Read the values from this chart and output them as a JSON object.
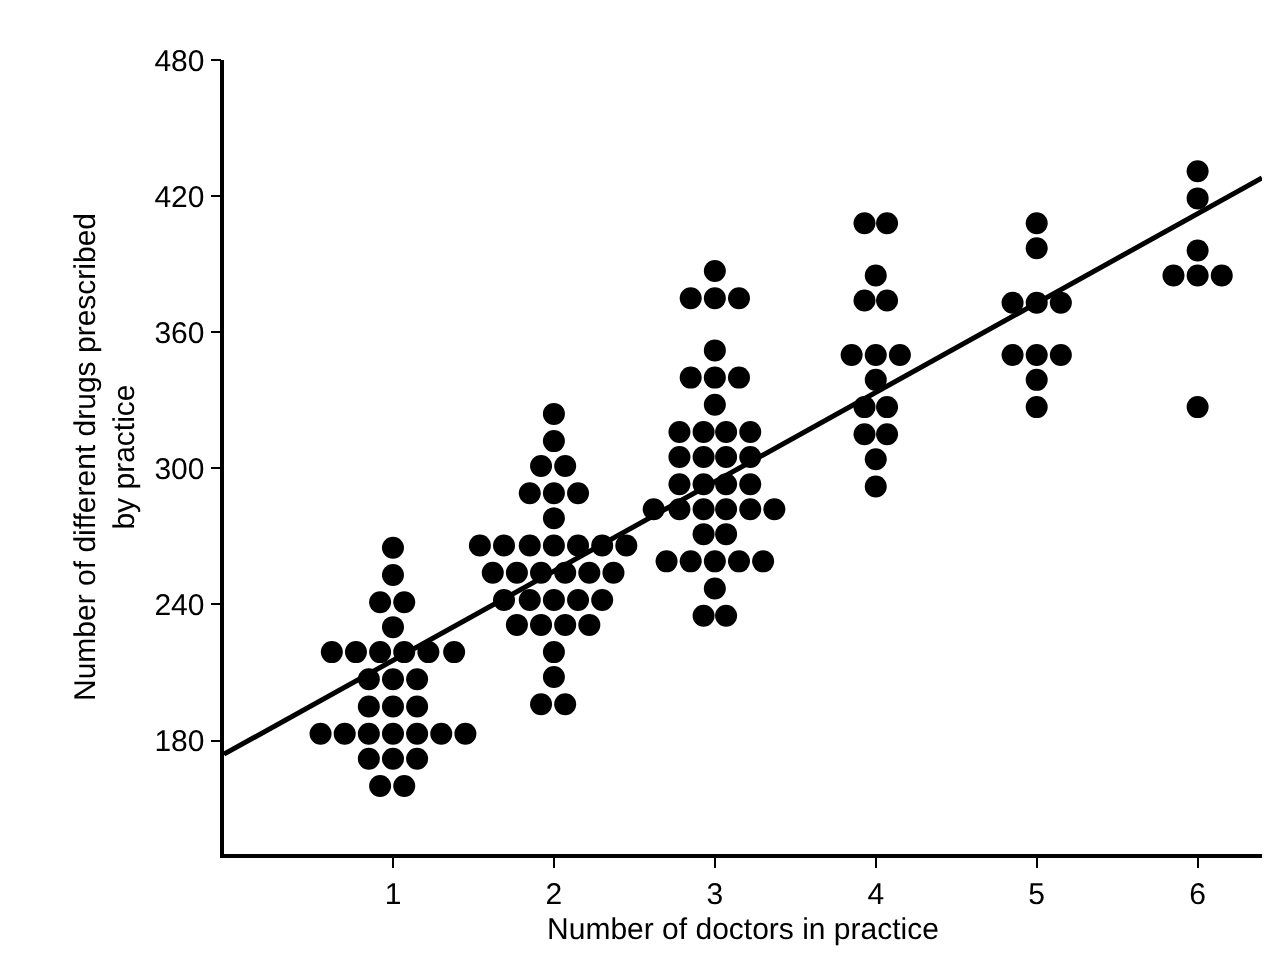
{
  "chart_data": {
    "type": "scatter",
    "xlabel": "Number of doctors in practice",
    "ylabel": "Number of different drugs prescribed\nby practice",
    "xlim": [
      -0.05,
      6.4
    ],
    "ylim": [
      130,
      480
    ],
    "xticks": [
      1,
      2,
      3,
      4,
      5,
      6
    ],
    "yticks": [
      180,
      240,
      300,
      360,
      420,
      480
    ],
    "grid": false,
    "legend": false,
    "series": [
      {
        "marker": "circle",
        "color": "#000000",
        "x": [
          1,
          1,
          0.92,
          1.07,
          1,
          0.62,
          0.77,
          0.92,
          1.07,
          1.22,
          1.38,
          0.85,
          1,
          1.15,
          0.85,
          1,
          1.15,
          0.55,
          0.7,
          0.85,
          1,
          1.15,
          1.3,
          1.45,
          0.85,
          1,
          1.15,
          0.92,
          1.07,
          2,
          2,
          1.92,
          2.07,
          1.85,
          2,
          2.15,
          2,
          1.54,
          1.69,
          1.85,
          2,
          2.15,
          2.3,
          2.45,
          1.62,
          1.77,
          1.92,
          2.07,
          2.22,
          2.37,
          1.69,
          1.85,
          2,
          2.15,
          2.3,
          1.77,
          1.92,
          2.07,
          2.22,
          2,
          2,
          1.92,
          2.07,
          3,
          2.85,
          3,
          3.15,
          3,
          2.85,
          3,
          3.15,
          3,
          2.78,
          2.93,
          3.07,
          3.22,
          2.78,
          2.93,
          3.07,
          3.22,
          2.78,
          2.93,
          3.07,
          3.22,
          2.62,
          2.78,
          2.93,
          3.07,
          3.22,
          3.37,
          2.93,
          3.07,
          2.7,
          2.85,
          3,
          3.15,
          3.3,
          3,
          2.93,
          3.07,
          3.93,
          4.07,
          4,
          3.93,
          4.07,
          3.85,
          4,
          4.15,
          4,
          3.93,
          4.07,
          3.93,
          4.07,
          4,
          4,
          5,
          5,
          4.85,
          5,
          5.15,
          4.85,
          5,
          5.15,
          5,
          5,
          6,
          6,
          6,
          5.85,
          6,
          6.15,
          6
        ],
        "values": [
          265,
          253,
          241,
          241,
          230,
          219,
          219,
          219,
          219,
          219,
          219,
          207,
          207,
          207,
          195,
          195,
          195,
          183,
          183,
          183,
          183,
          183,
          183,
          183,
          172,
          172,
          172,
          160,
          160,
          324,
          312,
          301,
          301,
          289,
          289,
          289,
          278,
          266,
          266,
          266,
          266,
          266,
          266,
          266,
          254,
          254,
          254,
          254,
          254,
          254,
          242,
          242,
          242,
          242,
          242,
          231,
          231,
          231,
          231,
          219,
          208,
          196,
          196,
          387,
          375,
          375,
          375,
          352,
          340,
          340,
          340,
          328,
          316,
          316,
          316,
          316,
          305,
          305,
          305,
          305,
          293,
          293,
          293,
          293,
          282,
          282,
          282,
          282,
          282,
          282,
          271,
          271,
          259,
          259,
          259,
          259,
          259,
          247,
          235,
          235,
          408,
          408,
          385,
          374,
          374,
          350,
          350,
          350,
          339,
          327,
          327,
          315,
          315,
          304,
          292,
          408,
          397,
          373,
          373,
          373,
          350,
          350,
          350,
          339,
          327,
          431,
          419,
          396,
          385,
          385,
          385,
          327
        ]
      },
      {
        "type": "line",
        "color": "#000000",
        "line_style": "solid",
        "x": [
          -0.05,
          6.4
        ],
        "values": [
          174,
          428
        ]
      }
    ]
  }
}
